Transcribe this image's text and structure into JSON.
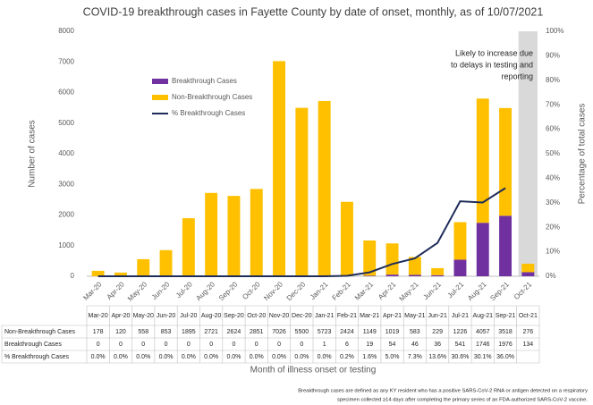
{
  "chart_data": {
    "type": "bar",
    "title": "COVID-19 breakthrough cases in Fayette County by date of onset, monthly, as of 10/07/2021",
    "y_label": "Number of cases",
    "y2_label": "Percentage of total cases",
    "x_label": "Month of illness onset or testing",
    "annotation": [
      "Likely to increase due",
      "to delays in testing and",
      "reporting"
    ],
    "footnote": [
      "Breakthrough cases are defined as any KY resident who has a positive SARS-CoV-2 RNA or antigen detected on a respiratory",
      "specimen collected ≥14 days after completing the primary series of an FDA-authorized SARS-CoV-2 vaccine."
    ],
    "categories": [
      "Mar-20",
      "Apr-20",
      "May-20",
      "Jun-20",
      "Jul-20",
      "Aug-20",
      "Sep-20",
      "Oct-20",
      "Nov-20",
      "Dec-20",
      "Jan-21",
      "Feb-21",
      "Mar-21",
      "Apr-21",
      "May-21",
      "Jun-21",
      "Jul-21",
      "Aug-21",
      "Sep-21",
      "Oct-21"
    ],
    "series": [
      {
        "name": "Non-Breakthrough Cases",
        "color": "#ffc000",
        "values": [
          178,
          120,
          558,
          853,
          1895,
          2721,
          2624,
          2851,
          7026,
          5500,
          5723,
          2424,
          1149,
          1019,
          583,
          229,
          1226,
          4057,
          3518,
          276
        ]
      },
      {
        "name": "Breakthrough Cases",
        "color": "#7030a0",
        "values": [
          0,
          0,
          0,
          0,
          0,
          0,
          0,
          0,
          0,
          0,
          1,
          6,
          19,
          54,
          46,
          36,
          541,
          1746,
          1976,
          134
        ]
      },
      {
        "name": "% Breakthrough Cases",
        "color": "#1f2d5a",
        "axis": "y2",
        "values": [
          0,
          0,
          0,
          0,
          0,
          0,
          0,
          0,
          0,
          0,
          0,
          0.2,
          1.6,
          5.0,
          7.3,
          13.6,
          30.6,
          30.1,
          36.0,
          null
        ],
        "value_labels": [
          "0.0%",
          "0.0%",
          "0.0%",
          "0.0%",
          "0.0%",
          "0.0%",
          "0.0%",
          "0.0%",
          "0.0%",
          "0.0%",
          "0.0%",
          "0.2%",
          "1.6%",
          "5.0%",
          "7.3%",
          "13.6%",
          "30.6%",
          "30.1%",
          "36.0%",
          null
        ]
      }
    ],
    "ylim": [
      0,
      8000
    ],
    "yticks": [
      0,
      1000,
      2000,
      3000,
      4000,
      5000,
      6000,
      7000,
      8000
    ],
    "y2lim": [
      0,
      100
    ],
    "y2ticks": [
      {
        "value": 0,
        "label": "0%"
      },
      {
        "value": 10,
        "label": "10%"
      },
      {
        "value": 20,
        "label": "20%"
      },
      {
        "value": 30,
        "label": "30%"
      },
      {
        "value": 40,
        "label": "40%"
      },
      {
        "value": 50,
        "label": "50%"
      },
      {
        "value": 60,
        "label": "60%"
      },
      {
        "value": 70,
        "label": "70%"
      },
      {
        "value": 80,
        "label": "80%"
      },
      {
        "value": 90,
        "label": "90%"
      },
      {
        "value": 100,
        "label": "100%"
      }
    ],
    "shaded_category": 19,
    "grid": false
  }
}
